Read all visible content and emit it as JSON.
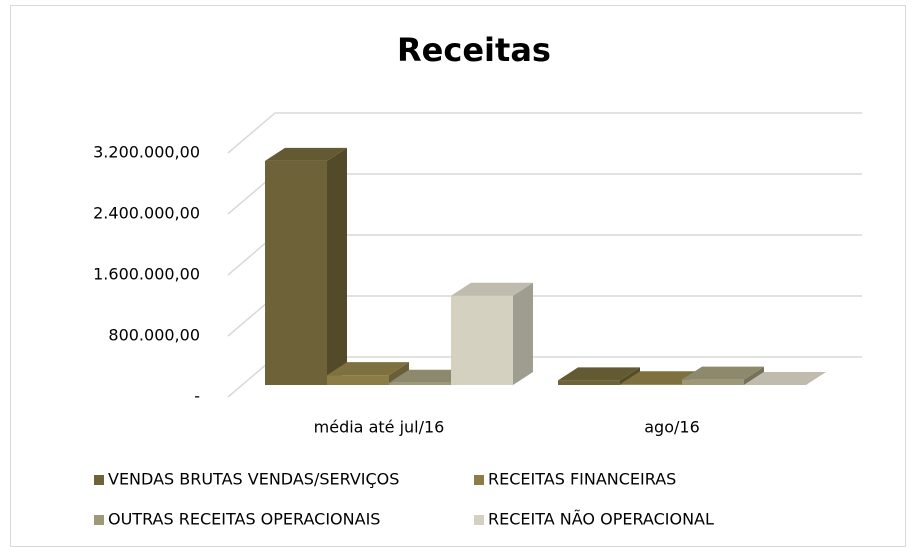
{
  "chart_data": {
    "type": "bar3d",
    "title": "Receitas",
    "categories": [
      "média até jul/16",
      "ago/16"
    ],
    "series": [
      {
        "name": "VENDAS BRUTAS VENDAS/SERVIÇOS",
        "color": "#6e6338",
        "values": [
          2940000,
          60000
        ]
      },
      {
        "name": "RECEITAS FINANCEIRAS",
        "color": "#8c7d46",
        "values": [
          130000,
          10000
        ]
      },
      {
        "name": "OUTRAS RECEITAS OPERACIONAIS",
        "color": "#9d9878",
        "values": [
          30000,
          70000
        ]
      },
      {
        "name": "RECEITA NÃO OPERACIONAL",
        "color": "#d4d1c0",
        "values": [
          1170000,
          0
        ]
      }
    ],
    "ylim": [
      0,
      3200000
    ],
    "yticks": [
      {
        "value": 0,
        "label": "-"
      },
      {
        "value": 800000,
        "label": "800.000,00"
      },
      {
        "value": 1600000,
        "label": "1.600.000,00"
      },
      {
        "value": 2400000,
        "label": "2.400.000,00"
      },
      {
        "value": 3200000,
        "label": "3.200.000,00"
      }
    ],
    "grid": true
  }
}
